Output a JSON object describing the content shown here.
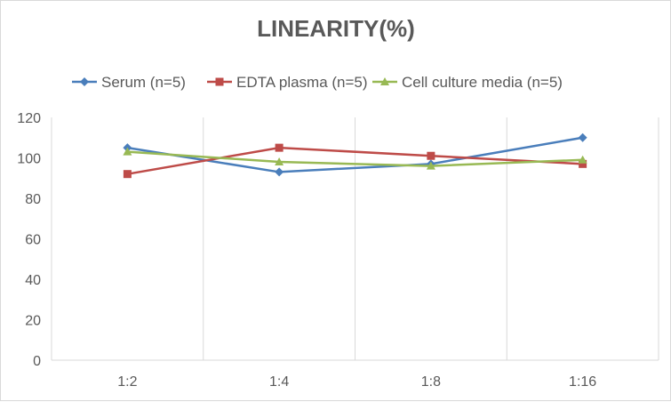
{
  "chart_data": {
    "type": "line",
    "title": "LINEARITY(%)",
    "categories": [
      "1:2",
      "1:4",
      "1:8",
      "1:16"
    ],
    "series": [
      {
        "name": "Serum (n=5)",
        "values": [
          105,
          93,
          97,
          110
        ],
        "color": "#4a7ebb",
        "marker": "diamond"
      },
      {
        "name": "EDTA plasma (n=5)",
        "values": [
          92,
          105,
          101,
          97
        ],
        "color": "#be4b48",
        "marker": "square"
      },
      {
        "name": "Cell culture media (n=5)",
        "values": [
          103,
          98,
          96,
          99
        ],
        "color": "#98b954",
        "marker": "triangle"
      }
    ],
    "ylim": [
      0,
      120
    ],
    "yticks": [
      0,
      20,
      40,
      60,
      80,
      100,
      120
    ],
    "xlabel": "",
    "ylabel": "",
    "legend": "top",
    "grid": "vertical"
  }
}
